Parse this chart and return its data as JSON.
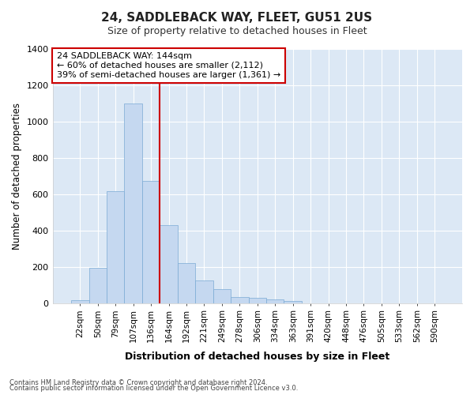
{
  "title": "24, SADDLEBACK WAY, FLEET, GU51 2US",
  "subtitle": "Size of property relative to detached houses in Fleet",
  "xlabel": "Distribution of detached houses by size in Fleet",
  "ylabel": "Number of detached properties",
  "bar_color": "#c5d8f0",
  "bar_edge_color": "#7baad4",
  "fig_bg_color": "#ffffff",
  "plot_bg_color": "#dce8f5",
  "grid_color": "#ffffff",
  "annotation_box_edge_color": "#cc0000",
  "vline_color": "#cc0000",
  "categories": [
    "22sqm",
    "50sqm",
    "79sqm",
    "107sqm",
    "136sqm",
    "164sqm",
    "192sqm",
    "221sqm",
    "249sqm",
    "278sqm",
    "306sqm",
    "334sqm",
    "363sqm",
    "391sqm",
    "420sqm",
    "448sqm",
    "476sqm",
    "505sqm",
    "533sqm",
    "562sqm",
    "590sqm"
  ],
  "values": [
    15,
    195,
    615,
    1100,
    670,
    430,
    220,
    125,
    75,
    35,
    30,
    20,
    10,
    0,
    0,
    0,
    0,
    0,
    0,
    0,
    0
  ],
  "ylim": [
    0,
    1400
  ],
  "yticks": [
    0,
    200,
    400,
    600,
    800,
    1000,
    1200,
    1400
  ],
  "vline_bin_index": 4,
  "annotation_text_line1": "24 SADDLEBACK WAY: 144sqm",
  "annotation_text_line2": "← 60% of detached houses are smaller (2,112)",
  "annotation_text_line3": "39% of semi-detached houses are larger (1,361) →",
  "footnote1": "Contains HM Land Registry data © Crown copyright and database right 2024.",
  "footnote2": "Contains public sector information licensed under the Open Government Licence v3.0."
}
